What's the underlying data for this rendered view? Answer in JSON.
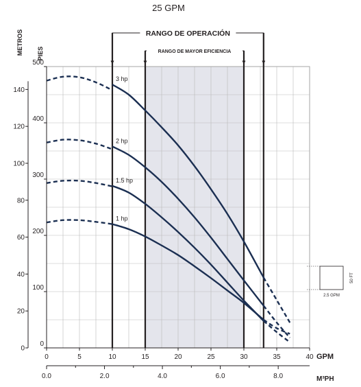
{
  "header": {
    "title": "25 GPM"
  },
  "chart_data": {
    "type": "line",
    "title": "25 GPM",
    "xlabel": "GPM",
    "x2label": "M³PH",
    "ylabel_left_outer": "METROS",
    "ylabel_left_inner": "PIES",
    "xlim": [
      0,
      40
    ],
    "x_ticks": [
      0,
      5,
      10,
      15,
      20,
      25,
      30,
      35,
      40
    ],
    "x2_ticks": [
      "0.0",
      "2.0",
      "4.0",
      "6.0",
      "8.0"
    ],
    "x2_tick_gpm": [
      0,
      8.81,
      17.61,
      26.42,
      35.22
    ],
    "ylim_feet": [
      0,
      500
    ],
    "feet_ticks": [
      0,
      100,
      200,
      300,
      400,
      500
    ],
    "meter_ticks": [
      0,
      20,
      40,
      60,
      80,
      100,
      120,
      140
    ],
    "grid": true,
    "operating_range": {
      "label": "RANGO DE OPERACIÓN",
      "x_start": 10,
      "x_end": 33
    },
    "efficiency_range": {
      "label": "RANGO DE MAYOR EFICIENCIA",
      "x_start": 15,
      "x_end": 30
    },
    "series": [
      {
        "name": "3 hp",
        "dashed_left": [
          [
            0,
            475
          ],
          [
            2.5,
            482
          ],
          [
            5,
            481
          ],
          [
            7.5,
            472
          ],
          [
            10,
            458
          ]
        ],
        "solid": [
          [
            10,
            468
          ],
          [
            12.5,
            450
          ],
          [
            15,
            422
          ],
          [
            17.5,
            392
          ],
          [
            20,
            360
          ],
          [
            22.5,
            323
          ],
          [
            25,
            282
          ],
          [
            27.5,
            238
          ],
          [
            30,
            189
          ],
          [
            33,
            125
          ]
        ],
        "dashed_right": [
          [
            33,
            125
          ],
          [
            35,
            85
          ],
          [
            37,
            45
          ]
        ]
      },
      {
        "name": "2 hp",
        "dashed_left": [
          [
            0,
            365
          ],
          [
            2.5,
            370
          ],
          [
            5,
            369
          ],
          [
            7.5,
            363
          ],
          [
            10,
            353
          ]
        ],
        "solid": [
          [
            10,
            358
          ],
          [
            12.5,
            343
          ],
          [
            15,
            321
          ],
          [
            17.5,
            295
          ],
          [
            20,
            265
          ],
          [
            22.5,
            232
          ],
          [
            25,
            196
          ],
          [
            27.5,
            158
          ],
          [
            30,
            120
          ],
          [
            33,
            75
          ]
        ],
        "dashed_right": [
          [
            33,
            75
          ],
          [
            35,
            45
          ],
          [
            37,
            18
          ]
        ]
      },
      {
        "name": "1.5 hp",
        "dashed_left": [
          [
            0,
            293
          ],
          [
            2.5,
            297
          ],
          [
            5,
            297
          ],
          [
            7.5,
            293
          ],
          [
            10,
            287
          ]
        ],
        "solid": [
          [
            10,
            288
          ],
          [
            12.5,
            276
          ],
          [
            15,
            256
          ],
          [
            17.5,
            232
          ],
          [
            20,
            206
          ],
          [
            22.5,
            178
          ],
          [
            25,
            148
          ],
          [
            27.5,
            116
          ],
          [
            30,
            84
          ],
          [
            33,
            48
          ]
        ],
        "dashed_right": [
          [
            33,
            48
          ],
          [
            35,
            28
          ],
          [
            37,
            10
          ]
        ]
      },
      {
        "name": "1 hp",
        "dashed_left": [
          [
            0,
            223
          ],
          [
            2.5,
            227
          ],
          [
            5,
            227
          ],
          [
            7.5,
            224
          ],
          [
            10,
            220
          ]
        ],
        "solid": [
          [
            10,
            220
          ],
          [
            12.5,
            211
          ],
          [
            15,
            198
          ],
          [
            17.5,
            182
          ],
          [
            20,
            165
          ],
          [
            22.5,
            145
          ],
          [
            25,
            124
          ],
          [
            27.5,
            102
          ],
          [
            30,
            80
          ],
          [
            33,
            50
          ]
        ],
        "dashed_right": [
          [
            33,
            50
          ],
          [
            35,
            35
          ],
          [
            37,
            25
          ]
        ]
      }
    ],
    "scale_box": {
      "vertical_label": "50 FT",
      "horizontal_label": "2.5 GPM"
    }
  }
}
